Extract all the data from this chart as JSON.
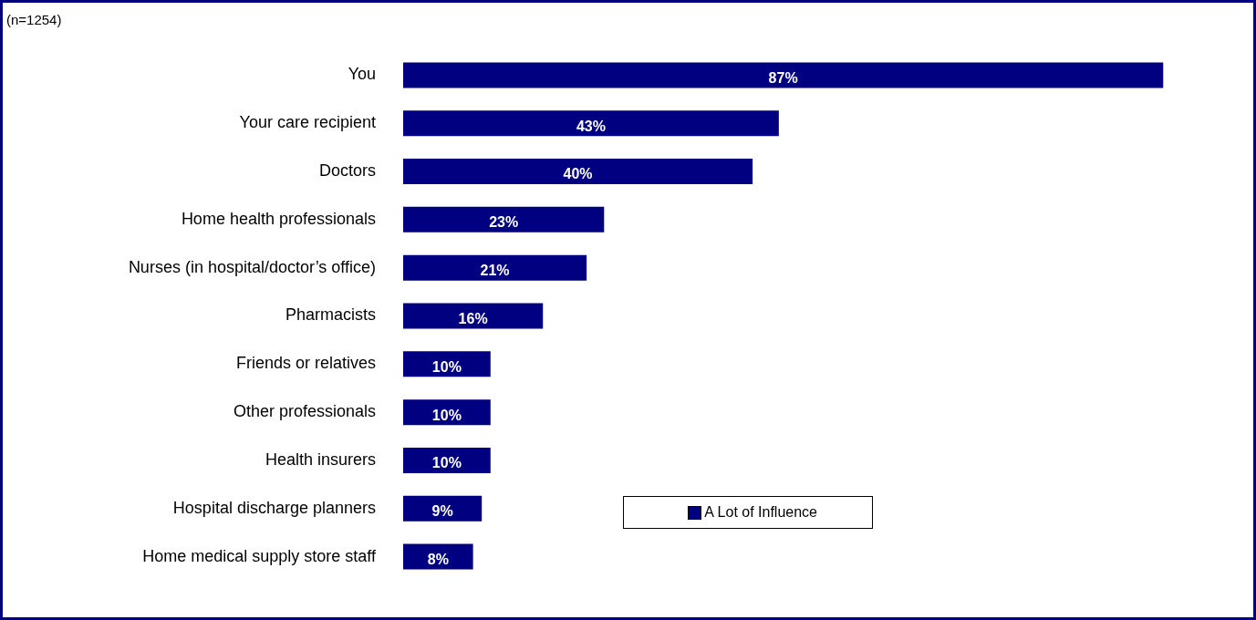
{
  "chart_data": {
    "type": "bar",
    "orientation": "horizontal",
    "categories": [
      "You",
      "Your care recipient",
      "Doctors",
      "Home health professionals",
      "Nurses (in hospital/doctor’s office)",
      "Pharmacists",
      "Friends or relatives",
      "Other professionals",
      "Health insurers",
      "Hospital discharge planners",
      "Home medical supply store staff"
    ],
    "series": [
      {
        "name": "A Lot of Influence",
        "color": "#000080",
        "values": [
          87,
          43,
          40,
          23,
          21,
          16,
          10,
          10,
          10,
          9,
          8
        ],
        "value_labels": [
          "87%",
          "43%",
          "40%",
          "23%",
          "21%",
          "16%",
          "10%",
          "10%",
          "10%",
          "9%",
          "8%"
        ]
      }
    ],
    "tick_labels": "y",
    "legend": "bottom right",
    "annotations": [
      "(n=1254)"
    ]
  }
}
